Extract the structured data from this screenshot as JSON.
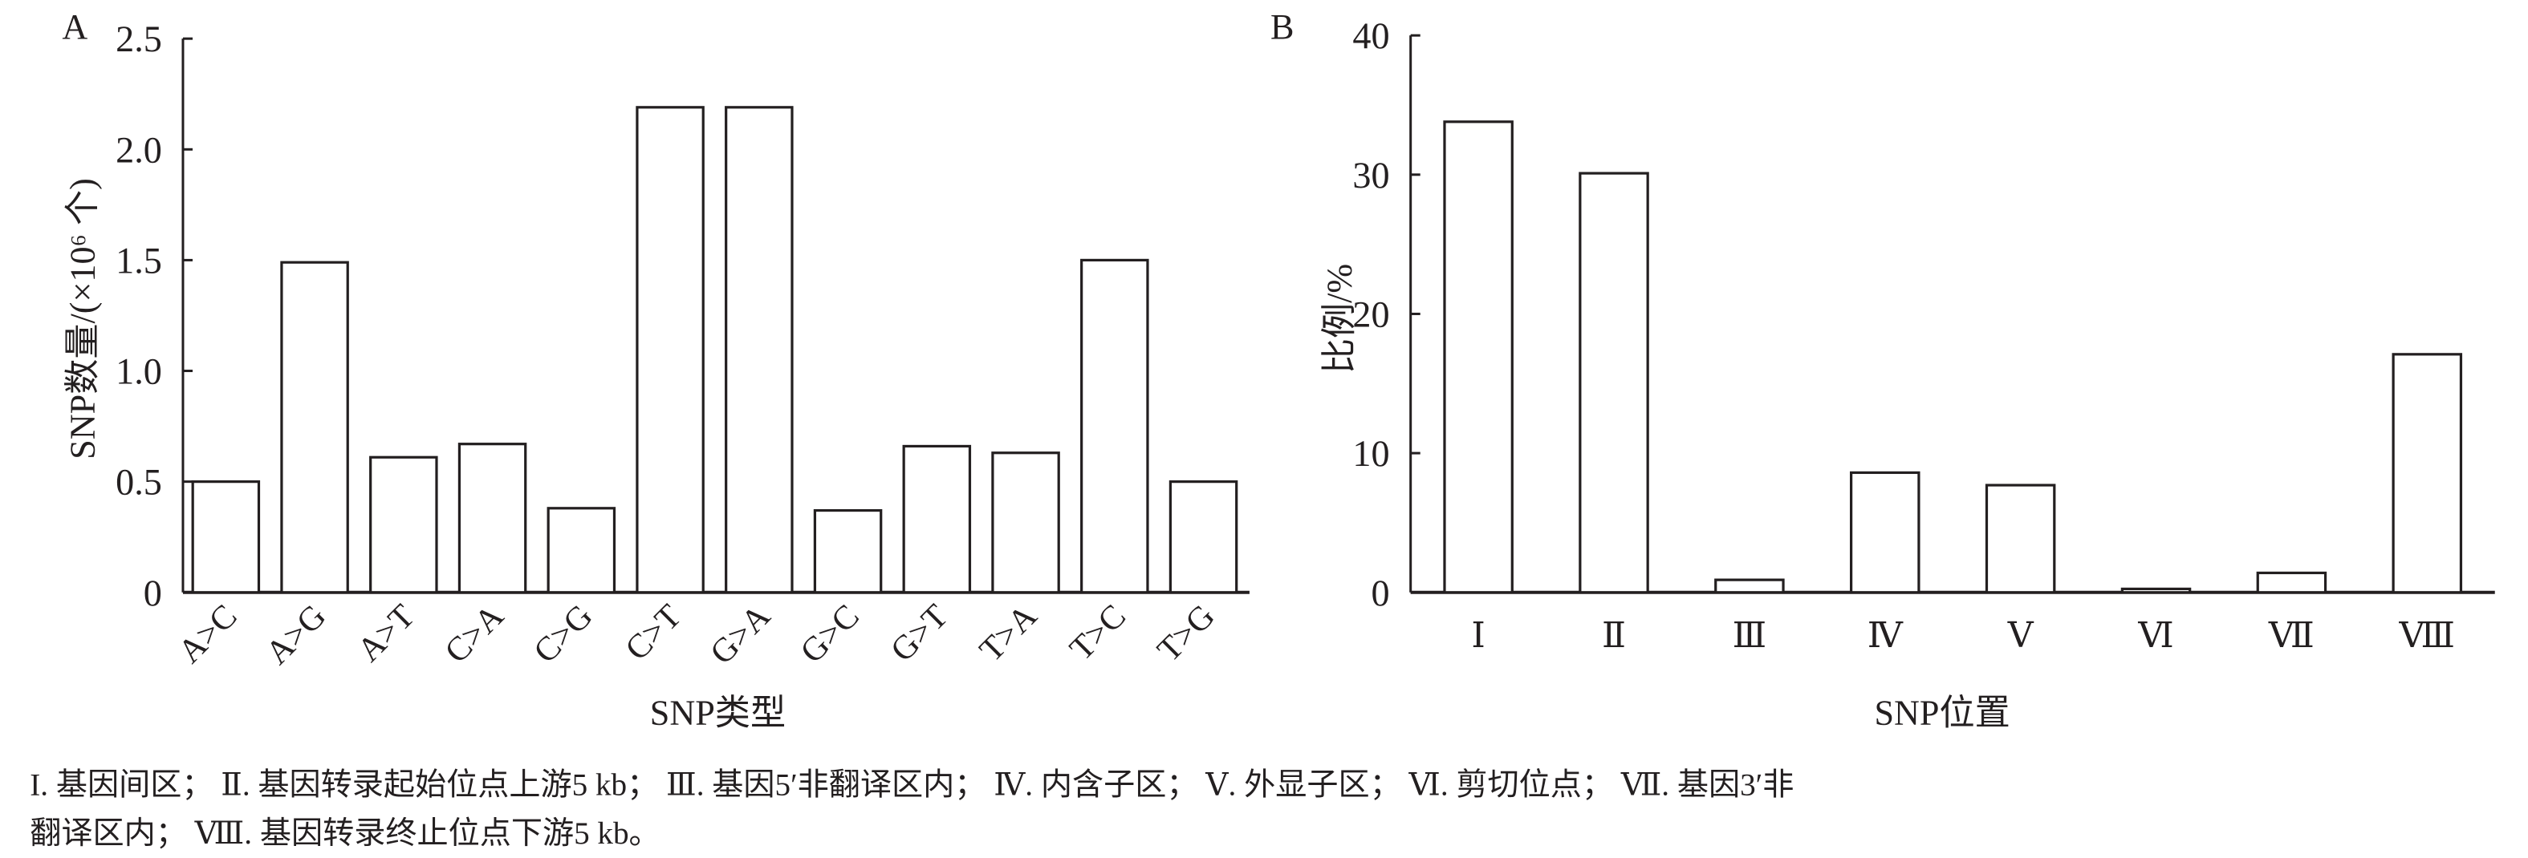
{
  "chart_data": [
    {
      "type": "bar",
      "panel_label": "A",
      "xlabel": "SNP类型",
      "ylabel": "SNP数量/(×10⁶ 个)",
      "categories": [
        "A>C",
        "A>G",
        "A>T",
        "C>A",
        "C>G",
        "C>T",
        "G>A",
        "G>C",
        "G>T",
        "T>A",
        "T>C",
        "T>G"
      ],
      "values": [
        0.5,
        1.49,
        0.61,
        0.67,
        0.38,
        2.19,
        2.19,
        0.37,
        0.66,
        0.63,
        1.5,
        0.5
      ],
      "ylim": [
        0,
        2.5
      ],
      "yticks": [
        "0",
        "0.5",
        "1.0",
        "1.5",
        "2.0",
        "2.5"
      ],
      "grid": false,
      "bar_fill": "#ffffff",
      "bar_stroke": "#231f20"
    },
    {
      "type": "bar",
      "panel_label": "B",
      "xlabel": "SNP位置",
      "ylabel": "比例/%",
      "categories": [
        "Ⅰ",
        "Ⅱ",
        "Ⅲ",
        "Ⅳ",
        "Ⅴ",
        "Ⅵ",
        "Ⅶ",
        "Ⅷ"
      ],
      "values": [
        33.8,
        30.1,
        0.9,
        8.6,
        7.7,
        0.25,
        1.4,
        17.1
      ],
      "ylim": [
        0,
        40
      ],
      "yticks": [
        "0",
        "10",
        "20",
        "30",
        "40"
      ],
      "grid": false,
      "bar_fill": "#ffffff",
      "bar_stroke": "#231f20"
    }
  ],
  "caption": {
    "line1": "I. 基因间区； Ⅱ. 基因转录起始位点上游5 kb； Ⅲ. 基因5′非翻译区内； Ⅳ. 内含子区； Ⅴ. 外显子区； Ⅵ. 剪切位点； Ⅶ. 基因3′非",
    "line2": "翻译区内； Ⅷ. 基因转录终止位点下游5 kb。"
  }
}
